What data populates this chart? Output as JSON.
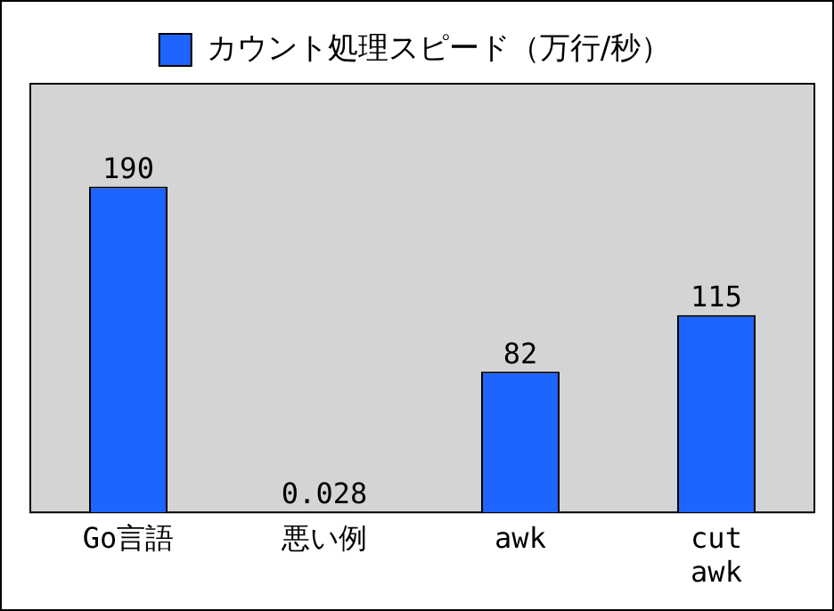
{
  "chart_data": {
    "type": "bar",
    "categories": [
      "Go言語",
      "悪い例",
      "awk",
      "cut\nawk"
    ],
    "series": [
      {
        "name": "カウント処理スピード（万行/秒）",
        "color": "#1e64ff",
        "values": [
          190,
          0.028,
          82,
          115
        ]
      }
    ],
    "data_labels": true,
    "legend": "top",
    "grid": false
  }
}
